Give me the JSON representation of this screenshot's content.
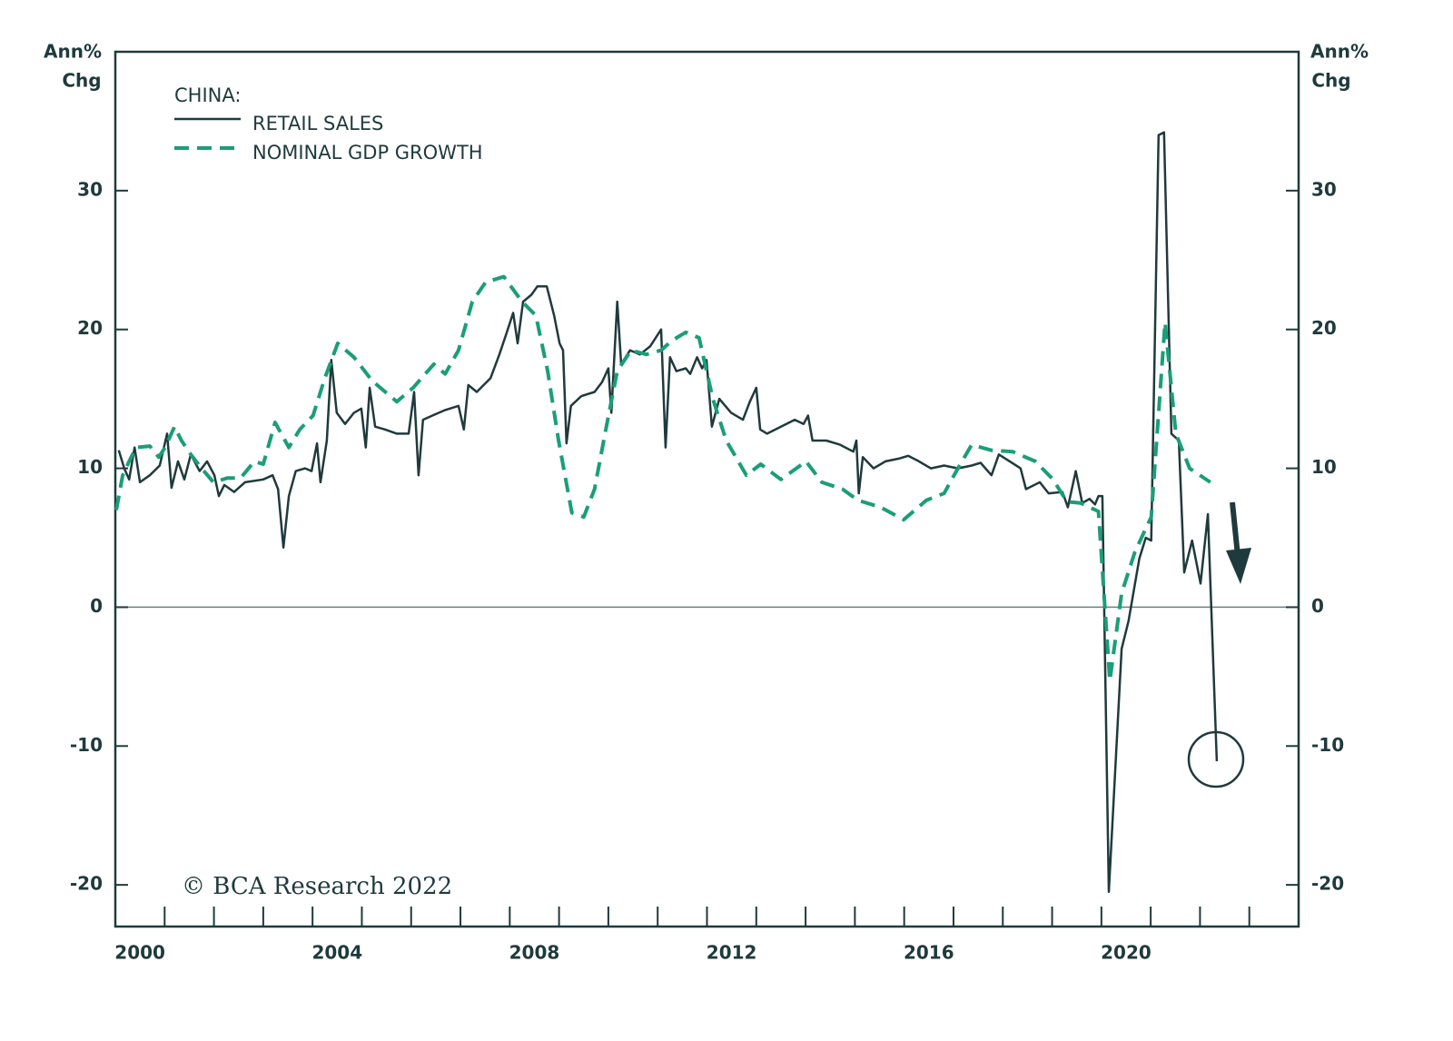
{
  "chart_data": {
    "type": "line",
    "ylabel_lines": [
      "Ann%",
      "Chg"
    ],
    "y2label_lines": [
      "Ann%",
      "Chg"
    ],
    "legend_title": "CHINA:",
    "source": "© BCA Research 2022",
    "xlim": [
      2000,
      2024
    ],
    "xticks": [
      {
        "value": 2000.5,
        "label": "2000"
      },
      {
        "value": 2004.5,
        "label": "2004"
      },
      {
        "value": 2008.5,
        "label": "2008"
      },
      {
        "value": 2012.5,
        "label": "2012"
      },
      {
        "value": 2016.5,
        "label": "2016"
      },
      {
        "value": 2020.5,
        "label": "2020"
      }
    ],
    "xminorticks": [
      2001,
      2002,
      2003,
      2004,
      2005,
      2006,
      2007,
      2008,
      2009,
      2010,
      2011,
      2012,
      2013,
      2014,
      2015,
      2016,
      2017,
      2018,
      2019,
      2020,
      2021,
      2022,
      2023
    ],
    "ylim": [
      -23,
      40
    ],
    "yticks": [
      -20,
      -10,
      0,
      10,
      20,
      30
    ],
    "y2lim": [
      -23,
      40
    ],
    "y2ticks": [
      -20,
      -10,
      0,
      10,
      20,
      30
    ],
    "zero_line": true,
    "series": [
      {
        "name": "RETAIL SALES",
        "color": "#1f3a3d",
        "dash": false,
        "x": [
          2000.07,
          2000.18,
          2000.28,
          2000.39,
          2000.5,
          2000.7,
          2000.9,
          2001.05,
          2001.14,
          2001.27,
          2001.4,
          2001.53,
          2001.71,
          2001.86,
          2002.01,
          2002.1,
          2002.21,
          2002.41,
          2002.63,
          2003.0,
          2003.19,
          2003.3,
          2003.41,
          2003.52,
          2003.66,
          2003.85,
          2003.98,
          2004.09,
          2004.16,
          2004.29,
          2004.38,
          2004.49,
          2004.66,
          2004.84,
          2004.99,
          2005.08,
          2005.16,
          2005.27,
          2005.47,
          2005.71,
          2005.95,
          2006.06,
          2006.15,
          2006.24,
          2006.43,
          2006.69,
          2006.96,
          2007.07,
          2007.16,
          2007.33,
          2007.61,
          2007.79,
          2007.94,
          2008.07,
          2008.16,
          2008.27,
          2008.44,
          2008.56,
          2008.75,
          2008.9,
          2009.01,
          2009.08,
          2009.15,
          2009.24,
          2009.45,
          2009.72,
          2009.87,
          2010.0,
          2010.06,
          2010.18,
          2010.26,
          2010.44,
          2010.64,
          2010.85,
          2011.07,
          2011.16,
          2011.25,
          2011.38,
          2011.57,
          2011.66,
          2011.8,
          2011.9,
          2011.99,
          2012.1,
          2012.25,
          2012.49,
          2012.73,
          2012.87,
          2013.0,
          2013.08,
          2013.22,
          2013.5,
          2013.78,
          2013.96,
          2014.05,
          2014.14,
          2014.42,
          2014.7,
          2014.97,
          2015.03,
          2015.08,
          2015.16,
          2015.38,
          2015.62,
          2015.89,
          2016.08,
          2016.3,
          2016.54,
          2016.81,
          2017.09,
          2017.37,
          2017.55,
          2017.77,
          2017.92,
          2018.14,
          2018.36,
          2018.47,
          2018.75,
          2018.93,
          2019.21,
          2019.32,
          2019.48,
          2019.61,
          2019.76,
          2019.87,
          2019.94,
          2020.02,
          2020.15,
          2020.41,
          2020.55,
          2020.77,
          2020.9,
          2021.01,
          2021.16,
          2021.27,
          2021.42,
          2021.57,
          2021.68,
          2021.84,
          2022.01,
          2022.16,
          2022.34
        ],
        "values": [
          11.3,
          10.0,
          9.2,
          11.5,
          9.0,
          9.5,
          10.2,
          12.5,
          8.6,
          10.5,
          9.2,
          11.0,
          9.8,
          10.5,
          9.5,
          8.0,
          8.8,
          8.3,
          9.0,
          9.2,
          9.5,
          8.5,
          4.3,
          8.0,
          9.8,
          10.0,
          9.8,
          11.8,
          9.0,
          12.0,
          17.8,
          14.0,
          13.2,
          14.0,
          14.3,
          11.5,
          15.8,
          13.0,
          12.8,
          12.5,
          12.5,
          15.5,
          9.5,
          13.5,
          13.8,
          14.2,
          14.5,
          12.8,
          16.0,
          15.5,
          16.5,
          18.2,
          19.8,
          21.2,
          19.0,
          22.0,
          22.5,
          23.1,
          23.1,
          21.0,
          19.0,
          18.5,
          11.8,
          14.5,
          15.2,
          15.5,
          16.2,
          17.2,
          14.0,
          22.0,
          17.5,
          18.5,
          18.2,
          18.8,
          20.0,
          11.5,
          18.0,
          17.0,
          17.2,
          16.8,
          18.0,
          17.2,
          17.8,
          13.0,
          15.0,
          14.0,
          13.5,
          14.8,
          15.8,
          12.8,
          12.5,
          13.0,
          13.5,
          13.2,
          13.8,
          12.0,
          12.0,
          11.7,
          11.2,
          12.0,
          8.2,
          10.8,
          10.0,
          10.5,
          10.7,
          10.9,
          10.5,
          10.0,
          10.2,
          10.0,
          10.2,
          10.4,
          9.5,
          11.0,
          10.5,
          10.0,
          8.5,
          9.0,
          8.2,
          8.3,
          7.2,
          9.8,
          7.5,
          7.8,
          7.4,
          8.0,
          8.0,
          -20.5,
          -3.0,
          -1.0,
          3.5,
          5.0,
          4.8,
          34.0,
          34.2,
          12.5,
          12.0,
          2.5,
          4.8,
          1.7,
          6.7,
          -11.1
        ]
      },
      {
        "name": "NOMINAL GDP GROWTH",
        "color": "#1a9e78",
        "dash": true,
        "x": [
          2000.02,
          2000.15,
          2000.28,
          2000.42,
          2000.7,
          2000.88,
          2001.01,
          2001.2,
          2001.34,
          2001.53,
          2001.75,
          2001.99,
          2002.27,
          2002.54,
          2002.82,
          2003.0,
          2003.24,
          2003.52,
          2003.74,
          2004.01,
          2004.25,
          2004.51,
          2004.84,
          2005.21,
          2005.71,
          2006.04,
          2006.46,
          2006.69,
          2006.96,
          2007.24,
          2007.51,
          2007.88,
          2008.25,
          2008.53,
          2008.77,
          2008.99,
          2009.26,
          2009.5,
          2009.72,
          2009.96,
          2010.18,
          2010.46,
          2010.77,
          2011.07,
          2011.29,
          2011.57,
          2011.84,
          2012.12,
          2012.39,
          2012.8,
          2013.09,
          2013.5,
          2014.01,
          2014.33,
          2014.75,
          2015.06,
          2015.52,
          2015.99,
          2016.45,
          2016.81,
          2017.09,
          2017.37,
          2017.77,
          2018.2,
          2018.66,
          2019.02,
          2019.3,
          2019.58,
          2019.94,
          2020.17,
          2020.41,
          2020.68,
          2021.01,
          2021.29,
          2021.51,
          2021.79,
          2022.21
        ],
        "values": [
          7.0,
          9.5,
          10.5,
          11.5,
          11.6,
          10.8,
          11.5,
          13.0,
          12.0,
          11.0,
          10.0,
          9.0,
          9.3,
          9.3,
          10.5,
          10.3,
          13.3,
          11.5,
          12.8,
          13.8,
          16.5,
          19.0,
          18.0,
          16.3,
          14.8,
          15.8,
          17.5,
          16.8,
          18.5,
          22.0,
          23.4,
          23.8,
          22.0,
          21.0,
          17.0,
          12.0,
          6.8,
          6.5,
          8.5,
          13.0,
          17.0,
          18.5,
          18.2,
          18.5,
          19.2,
          19.8,
          19.4,
          15.0,
          12.0,
          9.5,
          10.3,
          9.2,
          10.5,
          9.0,
          8.5,
          7.7,
          7.2,
          6.3,
          7.7,
          8.2,
          10.0,
          11.7,
          11.3,
          11.2,
          10.5,
          9.2,
          7.6,
          7.5,
          6.9,
          -5.3,
          1.0,
          4.0,
          6.5,
          20.5,
          12.5,
          10.0,
          9.0
        ]
      }
    ]
  }
}
